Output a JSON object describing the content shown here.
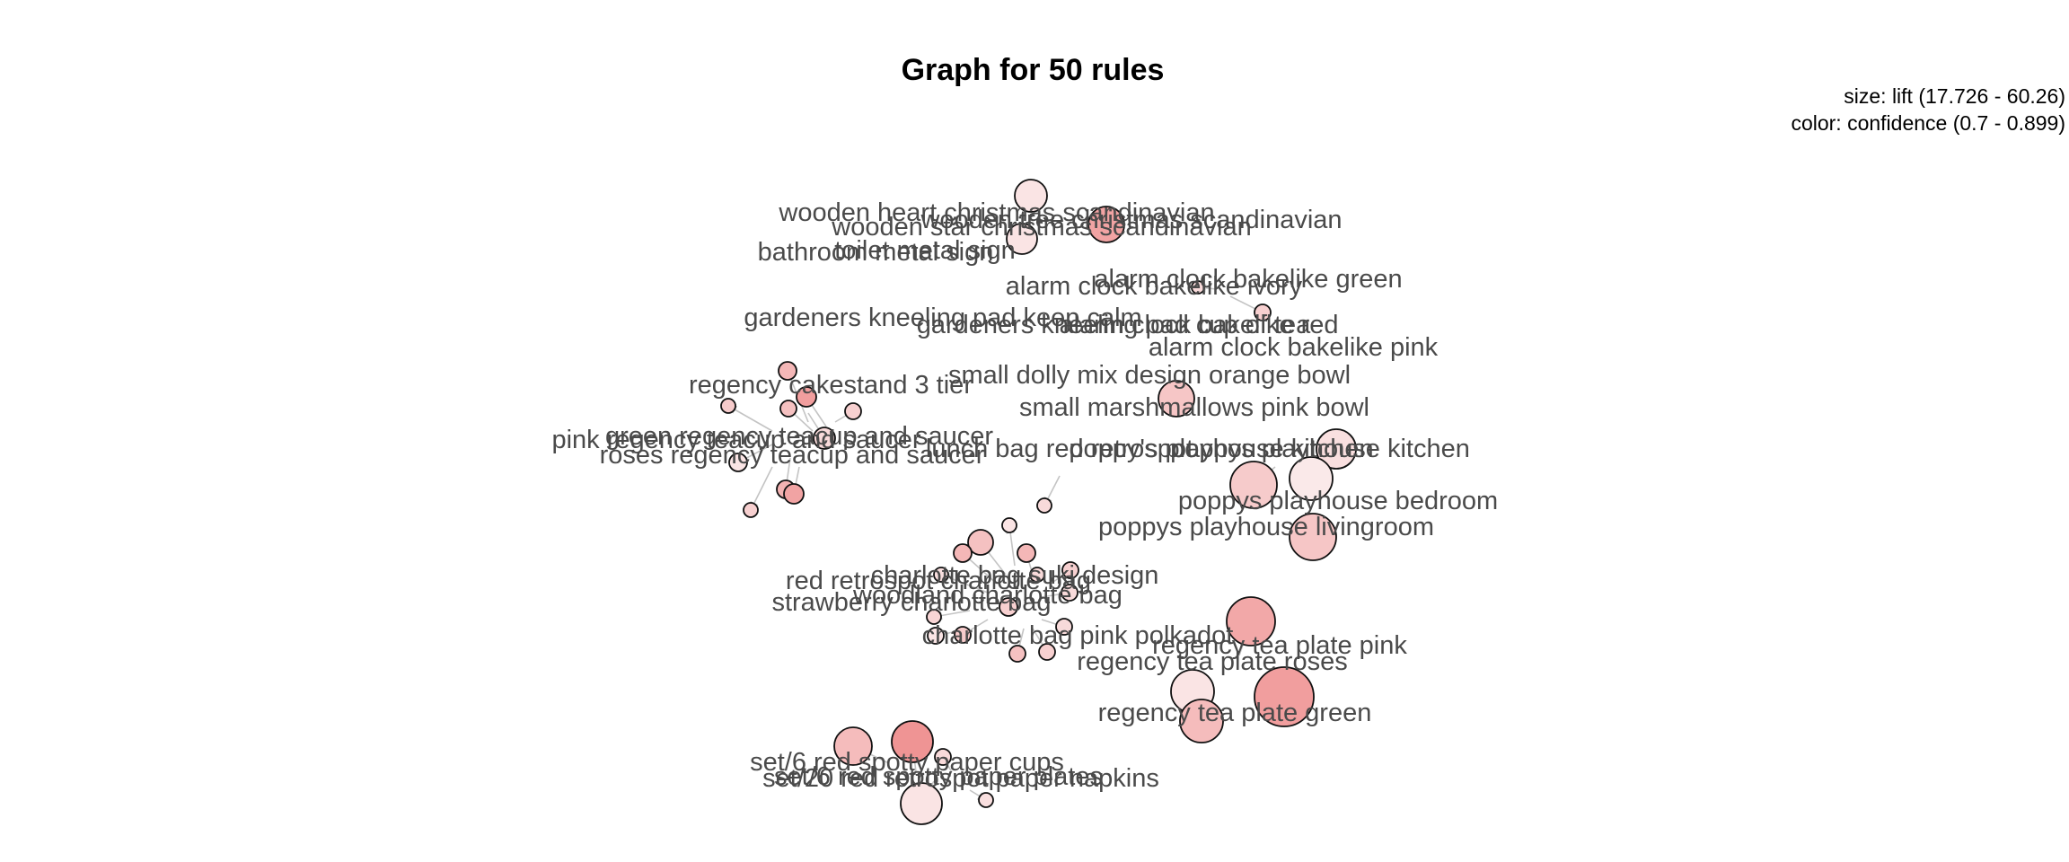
{
  "title": "Graph for 50 rules",
  "legend": {
    "size_line": "size: lift (17.726 - 60.26)",
    "color_line": "color: confidence (0.7 - 0.899)"
  },
  "colors": {
    "low_confidence": "#fbeeee",
    "high_confidence": "#ee8a8a",
    "edge": "#c4c4c4",
    "label": "#4a4a4a"
  },
  "labels": [
    "wooden heart christmas scandinavian",
    "wooden tree christmas scandinavian",
    "wooden star christmas scandinavian",
    "toilet metal sign",
    "bathroom metal sign",
    "alarm clock bakelike green",
    "alarm clock bakelike ivory",
    "gardeners kneeling pad keep calm",
    "gardeners kneeling pad cup of tea",
    "alarm clock bakelike red",
    "alarm clock bakelike pink",
    "small dolly mix design orange bowl",
    "regency cakestand 3 tier",
    "small marshmallows pink bowl",
    "green regency teacup and saucer",
    "pink regency teacup and saucer",
    "roses regency teacup and saucer",
    "lunch bag red retrospot",
    "poppy's playhouse kitchen",
    "poppys playhouse kitchen",
    "poppys playhouse bedroom",
    "poppys playhouse livingroom",
    "charlotte bag suki design",
    "red retrospot charlotte bag",
    "woodland charlotte bag",
    "strawberry charlotte bag",
    "charlotte bag pink polkadot",
    "regency tea plate pink",
    "regency tea plate roses",
    "regency tea plate green",
    "set/6 red spotty paper cups",
    "set/6 red spotty paper plates",
    "set/20 red retrospot paper napkins"
  ]
}
